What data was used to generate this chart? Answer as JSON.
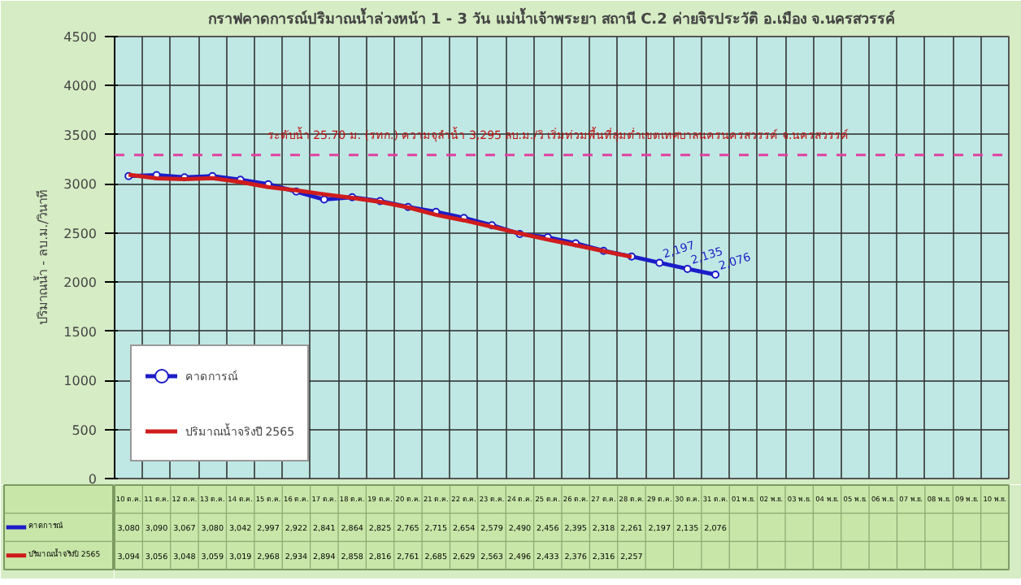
{
  "chart_data": {
    "type": "line",
    "title": "กราฟคาดการณ์ปริมาณน้ำล่วงหน้า 1 - 3 วัน แม่น้ำเจ้าพระยา  สถานี C.2  ค่ายจิรประวัติ  อ.เมือง  จ.นครสวรรค์",
    "ylabel": "ปริมาณน้ำ - ลบ.ม./วินาที",
    "categories": [
      "10 ต.ค.",
      "11 ต.ค.",
      "12 ต.ค.",
      "13 ต.ค.",
      "14 ต.ค.",
      "15 ต.ค.",
      "16 ต.ค.",
      "17 ต.ค.",
      "18 ต.ค.",
      "19 ต.ค.",
      "20 ต.ค.",
      "21 ต.ค.",
      "22 ต.ค.",
      "23 ต.ค.",
      "24 ต.ค.",
      "25 ต.ค.",
      "26 ต.ค.",
      "27 ต.ค.",
      "28 ต.ค.",
      "29 ต.ค.",
      "30 ต.ค.",
      "31 ต.ค.",
      "01 พ.ย.",
      "02 พ.ย.",
      "03 พ.ย.",
      "04 พ.ย.",
      "05 พ.ย.",
      "06 พ.ย.",
      "07 พ.ย.",
      "08 พ.ย.",
      "09 พ.ย.",
      "10 พ.ย."
    ],
    "series": [
      {
        "name": "คาดการณ์",
        "color": "#1c1cc8",
        "marker": "circle",
        "values": [
          3080,
          3090,
          3067,
          3080,
          3042,
          2997,
          2922,
          2841,
          2864,
          2825,
          2765,
          2715,
          2654,
          2579,
          2490,
          2456,
          2395,
          2318,
          2261,
          2197,
          2135,
          2076,
          null,
          null,
          null,
          null,
          null,
          null,
          null,
          null,
          null,
          null
        ],
        "value_labels": [
          "3,080",
          "3,090",
          "3,067",
          "3,080",
          "3,042",
          "2,997",
          "2,922",
          "2,841",
          "2,864",
          "2,825",
          "2,765",
          "2,715",
          "2,654",
          "2,579",
          "2,490",
          "2,456",
          "2,395",
          "2,318",
          "2,261",
          "2,197",
          "2,135",
          "2,076",
          null,
          null,
          null,
          null,
          null,
          null,
          null,
          null,
          null,
          null
        ]
      },
      {
        "name": "ปริมาณน้ำจริงปี 2565",
        "color": "#d01c1c",
        "marker": "none",
        "values": [
          3094,
          3056,
          3048,
          3059,
          3019,
          2968,
          2934,
          2894,
          2858,
          2816,
          2761,
          2685,
          2629,
          2563,
          2496,
          2433,
          2376,
          2316,
          2257,
          null,
          null,
          null,
          null,
          null,
          null,
          null,
          null,
          null,
          null,
          null,
          null,
          null
        ],
        "value_labels": [
          "3,094",
          "3,056",
          "3,048",
          "3,059",
          "3,019",
          "2,968",
          "2,934",
          "2,894",
          "2,858",
          "2,816",
          "2,761",
          "2,685",
          "2,629",
          "2,563",
          "2,496",
          "2,433",
          "2,376",
          "2,316",
          "2,257",
          null,
          null,
          null,
          null,
          null,
          null,
          null,
          null,
          null,
          null,
          null,
          null,
          null
        ]
      }
    ],
    "annotations": [
      {
        "text": "2,197",
        "x": "29 ต.ค.",
        "y": 2197
      },
      {
        "text": "2,135",
        "x": "30 ต.ค.",
        "y": 2135
      },
      {
        "text": "2,076",
        "x": "31 ต.ค.",
        "y": 2076
      }
    ],
    "ylim": [
      0,
      4500
    ],
    "yticks": [
      0,
      500,
      1000,
      1500,
      2000,
      2500,
      3000,
      3500,
      4000,
      4500
    ],
    "ref_lines": [
      {
        "axis": "y",
        "value": 3295,
        "label": "ระดับน้ำ 25.70 ม. (รทก.)  ความจุลำน้ำ 3,295 ลบ.ม./วิ  เริ่มท่วมพื้นที่ลุ่มต่ำเขตเทศบาลนครนครสวรรค์ จ.นครสวรรค์",
        "color": "#e040a0",
        "line_style": "dashed"
      }
    ],
    "grid": true,
    "legend": "bottom left",
    "line_style": "solid"
  }
}
